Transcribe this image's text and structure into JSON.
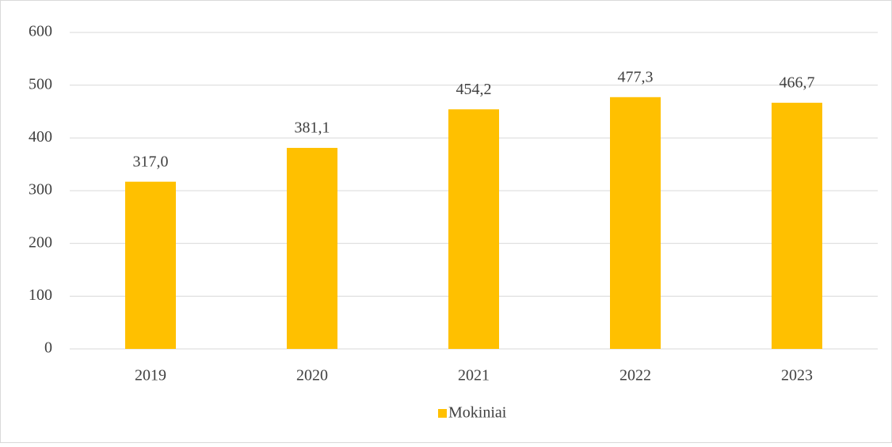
{
  "chart_data": {
    "type": "bar",
    "categories": [
      "2019",
      "2020",
      "2021",
      "2022",
      "2023"
    ],
    "series": [
      {
        "name": "Mokiniai",
        "color": "#ffc000",
        "values": [
          317.0,
          381.1,
          454.2,
          477.3,
          466.7
        ],
        "value_labels": [
          "317,0",
          "381,1",
          "454,2",
          "477,3",
          "466,7"
        ]
      }
    ],
    "ylim": [
      0,
      600
    ],
    "yticks": [
      0,
      100,
      200,
      300,
      400,
      500,
      600
    ],
    "grid": true,
    "legend": "bottom"
  }
}
